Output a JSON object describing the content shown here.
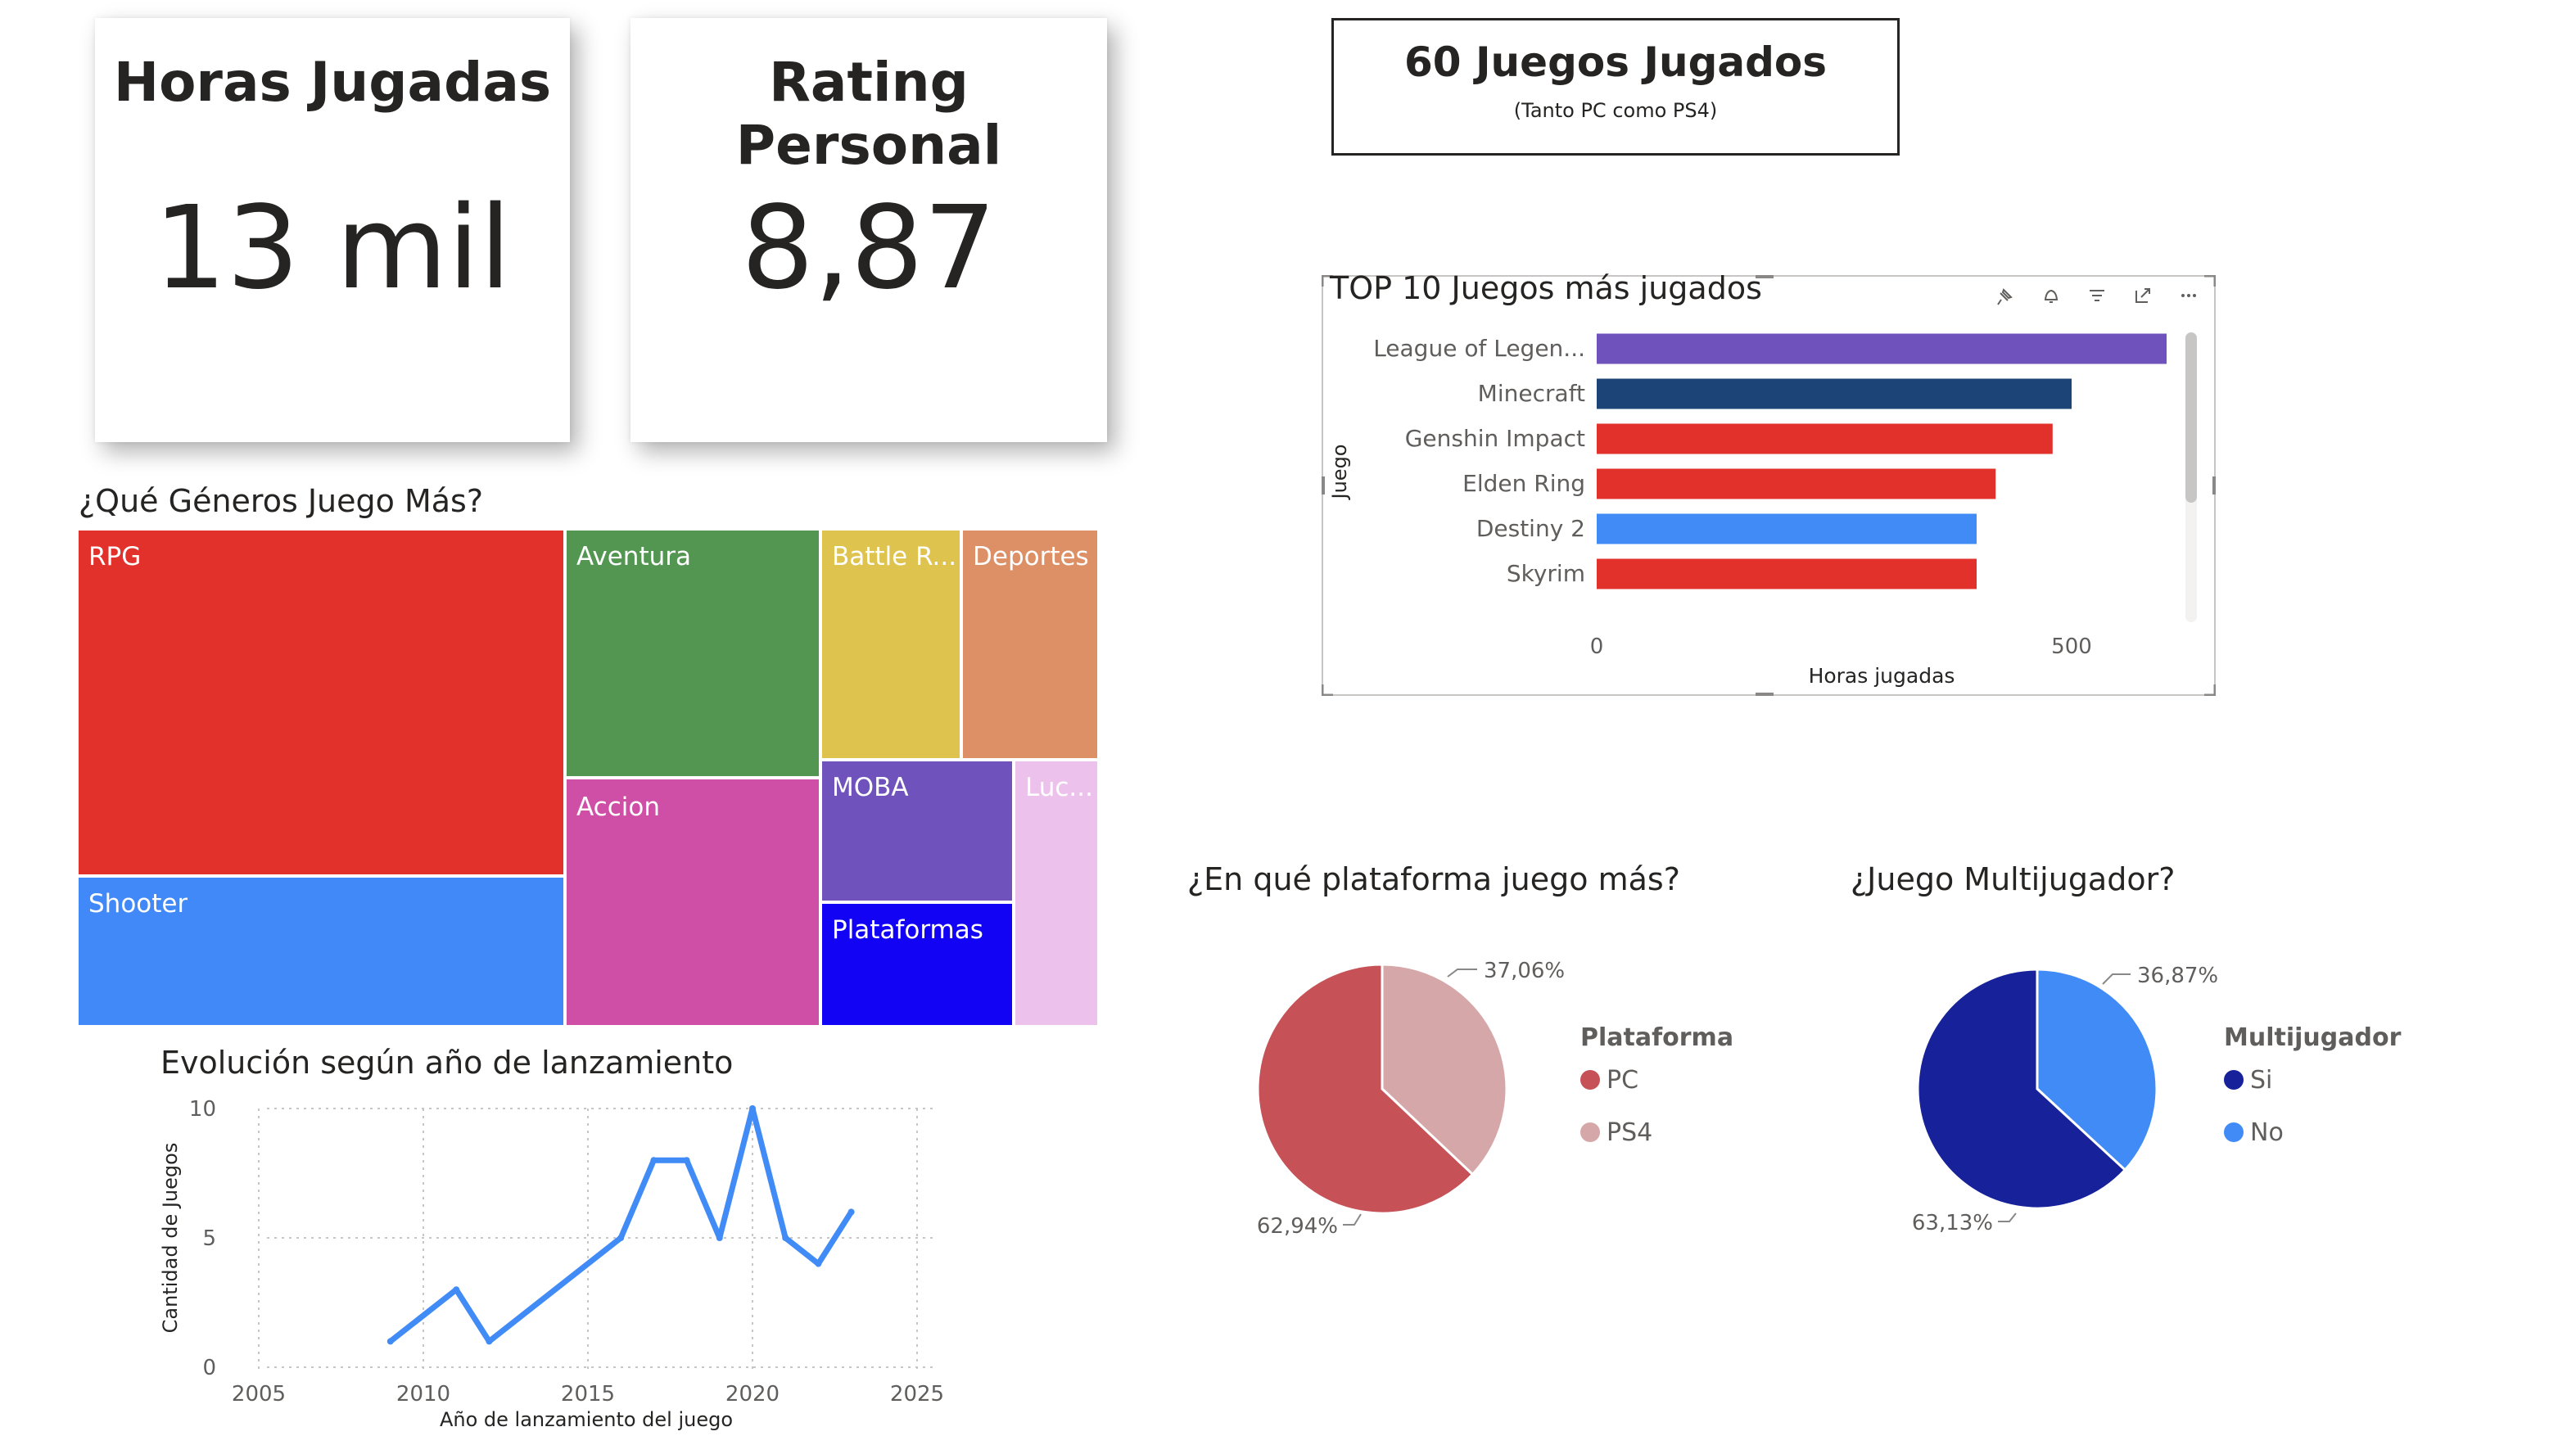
{
  "kpis": {
    "hours": {
      "title": "Horas Jugadas",
      "value": "13 mil"
    },
    "rating": {
      "title": "Rating Personal",
      "value": "8,87"
    }
  },
  "games_card": {
    "title": "60 Juegos Jugados",
    "subtitle": "(Tanto PC como PS4)"
  },
  "colors": {
    "rpg": "#e2312b",
    "shooter": "#4189f8",
    "aventura": "#529652",
    "accion": "#d04fa6",
    "battle": "#dec34f",
    "deportes": "#dd8f66",
    "moba": "#6f52bb",
    "plataformas": "#1303f5",
    "lucha": "#ecc2ec",
    "pc": "#c65157",
    "ps4": "#d6a7a8",
    "si": "#16219a",
    "no": "#418bf7",
    "line": "#418bf7",
    "lol": "#6f52bb",
    "minecraft": "#1c4476"
  },
  "chart_data": [
    {
      "type": "treemap",
      "title": "¿Qué Géneros Juego Más?",
      "categories": [
        "RPG",
        "Shooter",
        "Aventura",
        "Accion",
        "Battle R...",
        "Deportes",
        "MOBA",
        "Plataformas",
        "Luc..."
      ],
      "values": [
        38.2,
        10.6,
        11.6,
        11.7,
        6.6,
        5.5,
        4.5,
        3.4,
        3.6
      ]
    },
    {
      "type": "bar",
      "title": "TOP 10 Juegos más jugados",
      "xlabel": "Horas jugadas",
      "ylabel": "Juego",
      "categories": [
        "League of Legen...",
        "Minecraft",
        "Genshin Impact",
        "Elden Ring",
        "Destiny 2",
        "Skyrim"
      ],
      "values": [
        600,
        500,
        480,
        420,
        400,
        400
      ],
      "xlim": [
        0,
        600
      ],
      "xticks": [
        "0",
        "500"
      ],
      "xtick_values": [
        0,
        500
      ]
    },
    {
      "type": "line",
      "title": "Evolución según año de lanzamiento",
      "xlabel": "Año de lanzamiento del juego",
      "ylabel": "Cantidad de Juegos",
      "x": [
        2009,
        2011,
        2012,
        2016,
        2017,
        2018,
        2019,
        2020,
        2021,
        2022,
        2023
      ],
      "values": [
        1,
        3,
        1,
        5,
        8,
        8,
        5,
        10,
        5,
        4,
        6
      ],
      "xlim": [
        2005,
        2025
      ],
      "ylim": [
        0,
        10
      ],
      "xticks": [
        "2005",
        "2010",
        "2015",
        "2020",
        "2025"
      ],
      "xtick_values": [
        2005,
        2010,
        2015,
        2020,
        2025
      ],
      "yticks": [
        "0",
        "5",
        "10"
      ],
      "ytick_values": [
        0,
        5,
        10
      ],
      "grid": true
    },
    {
      "type": "pie",
      "title": "¿En qué plataforma juego más?",
      "legend_title": "Plataforma",
      "categories": [
        "PC",
        "PS4"
      ],
      "values": [
        62.94,
        37.06
      ],
      "labels": [
        "62,94%",
        "37,06%"
      ]
    },
    {
      "type": "pie",
      "title": "¿Juego Multijugador?",
      "legend_title": "Multijugador",
      "categories": [
        "Si",
        "No"
      ],
      "values": [
        63.13,
        36.87
      ],
      "labels": [
        "63,13%",
        "36,87%"
      ]
    }
  ]
}
